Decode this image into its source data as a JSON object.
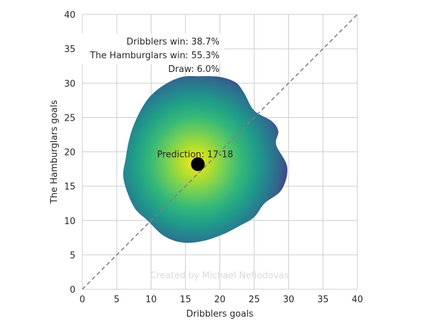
{
  "chart_data": {
    "type": "scatter",
    "xlabel": "Dribblers goals",
    "ylabel": "The Hamburglars goals",
    "xlim": [
      0,
      40
    ],
    "ylim": [
      0,
      40
    ],
    "xticks": [
      0,
      5,
      10,
      15,
      20,
      25,
      30,
      35,
      40
    ],
    "yticks": [
      0,
      5,
      10,
      15,
      20,
      25,
      30,
      35,
      40
    ],
    "grid": true,
    "diagonal_reference": {
      "from": [
        0,
        0
      ],
      "to": [
        40,
        40
      ],
      "style": "dashed",
      "color": "#808080"
    },
    "density": {
      "colormap": "viridis",
      "center": [
        16.5,
        18.5
      ],
      "outline": [
        [
          17,
          31
        ],
        [
          20,
          30.9
        ],
        [
          22.3,
          30.1
        ],
        [
          23.5,
          28.6
        ],
        [
          25,
          26
        ],
        [
          27.5,
          24.5
        ],
        [
          28.5,
          23
        ],
        [
          28.2,
          21
        ],
        [
          29.8,
          17.8
        ],
        [
          29,
          14.5
        ],
        [
          26.5,
          12.5
        ],
        [
          25,
          10.5
        ],
        [
          23,
          9.3
        ],
        [
          20.5,
          8
        ],
        [
          17.5,
          7
        ],
        [
          14.5,
          6.8
        ],
        [
          11.8,
          7.8
        ],
        [
          9.5,
          10
        ],
        [
          7.5,
          12
        ],
        [
          6,
          16
        ],
        [
          6.3,
          19
        ],
        [
          7,
          22.5
        ],
        [
          8.2,
          25.5
        ],
        [
          9.8,
          28
        ],
        [
          12,
          29.8
        ],
        [
          14.5,
          30.9
        ]
      ]
    },
    "prediction_point": {
      "x": 16.8,
      "y": 18.2,
      "color": "#000000"
    },
    "annotation": "Prediction: 17-18",
    "probabilities": [
      "Dribblers win: 38.7%",
      "The Hamburglars win: 55.3%",
      "Draw: 6.0%"
    ],
    "credit": "Created by Michael Nefiodovas"
  }
}
